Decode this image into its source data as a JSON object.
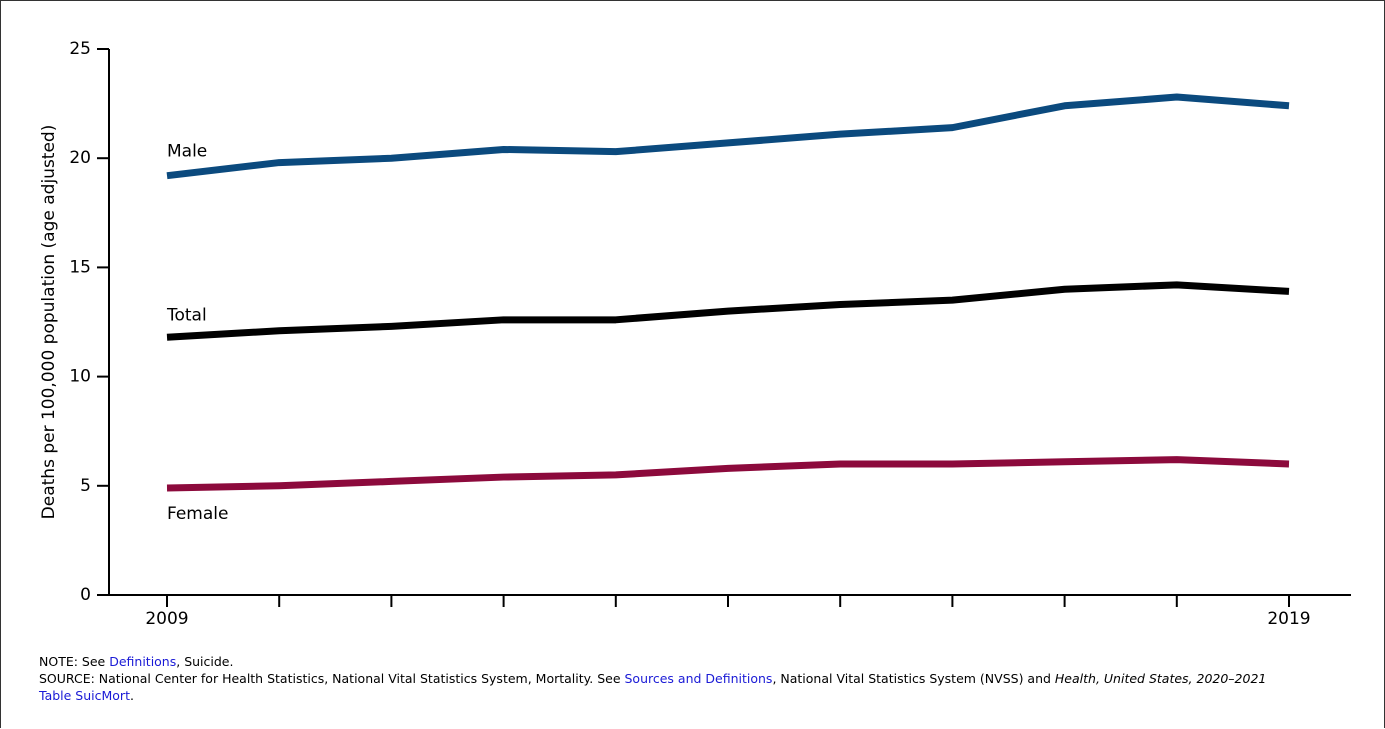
{
  "chart_data": {
    "type": "line",
    "y_label": "Deaths per 100,000 population (age adjusted)",
    "categories": [
      "2009",
      null,
      null,
      null,
      null,
      null,
      null,
      null,
      null,
      null,
      "2019"
    ],
    "series": [
      {
        "name": "Male",
        "color": "#0b4a7e",
        "values": [
          19.2,
          19.8,
          20.0,
          20.4,
          20.3,
          20.7,
          21.1,
          21.4,
          22.4,
          22.8,
          22.4
        ]
      },
      {
        "name": "Total",
        "color": "#000000",
        "values": [
          11.8,
          12.1,
          12.3,
          12.6,
          12.6,
          13.0,
          13.3,
          13.5,
          14.0,
          14.2,
          13.9
        ]
      },
      {
        "name": "Female",
        "color": "#8c0a3c",
        "values": [
          4.9,
          5.0,
          5.2,
          5.4,
          5.5,
          5.8,
          6.0,
          6.0,
          6.1,
          6.2,
          6.0
        ]
      }
    ],
    "ylim": [
      0,
      25
    ],
    "yticks": [
      0,
      5,
      10,
      15,
      20,
      25
    ],
    "note": {
      "prefix": "NOTE: See ",
      "link": "Definitions",
      "suffix": ", Suicide."
    },
    "source": {
      "prefix": "SOURCE: National Center for Health Statistics, National Vital Statistics System, Mortality. See ",
      "link": "Sources and Definitions",
      "middle": ", National Vital Statistics System (NVSS) and ",
      "italic": "Health, United States, 2020–2021",
      "link2": "Table SuicMort",
      "suffix": "."
    }
  }
}
